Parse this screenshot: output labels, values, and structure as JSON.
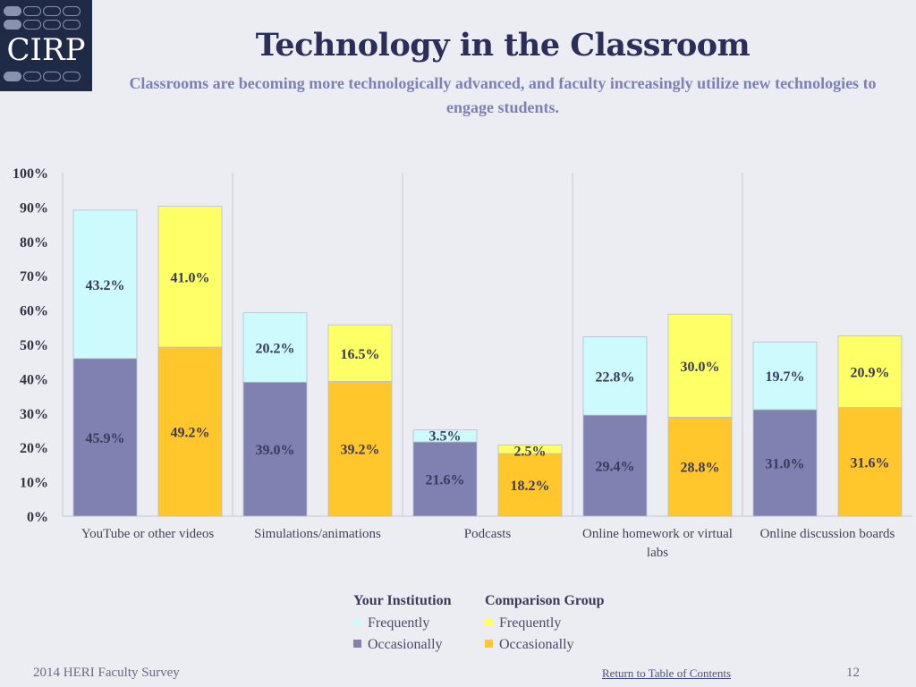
{
  "logo": {
    "text": "CIRP"
  },
  "header": {
    "title": "Technology in the Classroom",
    "subtitle": "Classrooms are becoming more technologically advanced, and faculty increasingly utilize new technologies to engage students."
  },
  "colors": {
    "inst_frequently": "#cdfafc",
    "inst_occasionally": "#7f82b0",
    "comp_frequently": "#ffff66",
    "comp_occasionally": "#ffc72c"
  },
  "chart_data": {
    "type": "bar",
    "stacked": true,
    "grouped": true,
    "categories": [
      "YouTube or other videos",
      "Simulations/animations",
      "Podcasts",
      "Online homework or virtual labs",
      "Online discussion boards"
    ],
    "groups": [
      {
        "name": "Your Institution",
        "series": [
          {
            "name": "Occasionally",
            "values": [
              45.9,
              39.0,
              21.6,
              29.4,
              31.0
            ],
            "labels": [
              "45.9%",
              "39.0%",
              "21.6%",
              "29.4%",
              "31.0%"
            ]
          },
          {
            "name": "Frequently",
            "values": [
              43.2,
              20.2,
              3.5,
              22.8,
              19.7
            ],
            "labels": [
              "43.2%",
              "20.2%",
              "3.5%",
              "22.8%",
              "19.7%"
            ]
          }
        ]
      },
      {
        "name": "Comparison Group",
        "series": [
          {
            "name": "Occasionally",
            "values": [
              49.2,
              39.2,
              18.2,
              28.8,
              31.6
            ],
            "labels": [
              "49.2%",
              "39.2%",
              "18.2%",
              "28.8%",
              "31.6%"
            ]
          },
          {
            "name": "Frequently",
            "values": [
              41.0,
              16.5,
              2.5,
              30.0,
              20.9
            ],
            "labels": [
              "41.0%",
              "16.5%",
              "2.5%",
              "30.0%",
              "20.9%"
            ]
          }
        ]
      }
    ],
    "yticks": [
      "0%",
      "10%",
      "20%",
      "30%",
      "40%",
      "50%",
      "60%",
      "70%",
      "80%",
      "90%",
      "100%"
    ],
    "ylim": [
      0,
      100
    ],
    "grid": false,
    "legend_position": "bottom"
  },
  "legend": {
    "inst_header": "Your Institution",
    "comp_header": "Comparison Group",
    "frequently": "Frequently",
    "occasionally": "Occasionally"
  },
  "footer": {
    "survey": "2014 HERI Faculty Survey",
    "link": "Return to Table of Contents",
    "page": "12"
  }
}
